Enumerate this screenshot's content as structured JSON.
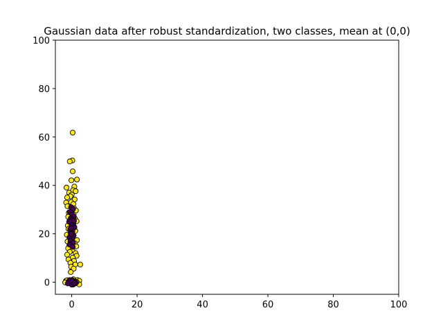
{
  "chart_data": {
    "type": "scatter",
    "title": "Gaussian data after robust standardization, two classes, mean at (0,0)",
    "xlabel": "",
    "ylabel": "",
    "xlim": [
      -5,
      100
    ],
    "ylim": [
      -5,
      100
    ],
    "xticks": [
      0,
      20,
      40,
      60,
      80,
      100
    ],
    "yticks": [
      0,
      20,
      40,
      60,
      80,
      100
    ],
    "grid": false,
    "legend": "none",
    "colors": {
      "class_0": "#440154",
      "class_1": "#fde725",
      "edge": "#000000"
    },
    "series": [
      {
        "class": 1,
        "points": [
          [
            0.3,
            61.8
          ],
          [
            0.2,
            50.3
          ],
          [
            -0.6,
            49.9
          ],
          [
            0.3,
            45.8
          ],
          [
            1.6,
            42.4
          ],
          [
            -0.1,
            42.1
          ],
          [
            0.8,
            39.5
          ],
          [
            -1.6,
            39.1
          ],
          [
            0.4,
            38.0
          ],
          [
            1.2,
            37.6
          ],
          [
            -0.8,
            37.0
          ],
          [
            0.0,
            36.2
          ],
          [
            -0.4,
            35.5
          ],
          [
            -1.4,
            35.0
          ],
          [
            0.9,
            34.2
          ],
          [
            -0.2,
            33.1
          ],
          [
            0.5,
            32.3
          ],
          [
            -1.7,
            32.9
          ],
          [
            -1.3,
            31.4
          ],
          [
            0.7,
            30.5
          ],
          [
            1.3,
            29.6
          ],
          [
            -0.9,
            28.7
          ],
          [
            0.6,
            27.9
          ],
          [
            -1.1,
            27.0
          ],
          [
            1.0,
            26.3
          ],
          [
            1.5,
            25.2
          ],
          [
            -0.5,
            24.6
          ],
          [
            -1.2,
            23.4
          ],
          [
            0.8,
            22.8
          ],
          [
            -1.0,
            22.0
          ],
          [
            1.1,
            21.2
          ],
          [
            -0.3,
            20.3
          ],
          [
            -1.5,
            19.6
          ],
          [
            0.4,
            19.1
          ],
          [
            1.6,
            17.4
          ],
          [
            -1.3,
            16.8
          ],
          [
            0.9,
            16.1
          ],
          [
            -0.7,
            15.4
          ],
          [
            1.4,
            14.8
          ],
          [
            -1.1,
            14.0
          ],
          [
            0.2,
            13.3
          ],
          [
            -0.6,
            12.5
          ],
          [
            1.2,
            12.0
          ],
          [
            -1.4,
            11.4
          ],
          [
            1.5,
            10.9
          ],
          [
            0.3,
            10.2
          ],
          [
            -1.0,
            9.4
          ],
          [
            0.7,
            8.8
          ],
          [
            -0.4,
            8.0
          ],
          [
            1.1,
            7.3
          ],
          [
            2.6,
            7.3
          ],
          [
            -0.2,
            6.4
          ],
          [
            0.6,
            5.6
          ],
          [
            -0.3,
            4.2
          ],
          [
            1.7,
            0.9
          ],
          [
            2.3,
            0.6
          ],
          [
            -1.8,
            0.5
          ],
          [
            0.5,
            1.2
          ],
          [
            -0.9,
            0.2
          ],
          [
            2.3,
            -0.9
          ],
          [
            1.1,
            -0.5
          ],
          [
            -1.4,
            0.8
          ],
          [
            0.8,
            0.4
          ],
          [
            -0.2,
            -0.7
          ],
          [
            1.5,
            0.1
          ],
          [
            -2.0,
            -0.1
          ],
          [
            0.1,
            0.9
          ],
          [
            0.4,
            -1.0
          ]
        ]
      },
      {
        "class": 0,
        "points": [
          [
            -0.2,
            31.0
          ],
          [
            0.4,
            30.2
          ],
          [
            -0.6,
            29.0
          ],
          [
            0.1,
            28.0
          ],
          [
            0.6,
            27.1
          ],
          [
            -0.3,
            26.4
          ],
          [
            0.3,
            25.8
          ],
          [
            -0.8,
            25.0
          ],
          [
            0.5,
            24.2
          ],
          [
            -0.1,
            23.5
          ],
          [
            0.8,
            22.6
          ],
          [
            -0.5,
            21.8
          ],
          [
            0.2,
            21.0
          ],
          [
            -0.3,
            20.1
          ],
          [
            0.6,
            19.3
          ],
          [
            -0.7,
            18.5
          ],
          [
            0.1,
            17.8
          ],
          [
            -0.4,
            17.0
          ],
          [
            0.4,
            16.2
          ],
          [
            -0.6,
            15.5
          ],
          [
            0.3,
            14.6
          ],
          [
            -0.2,
            22.3
          ],
          [
            0.7,
            25.4
          ],
          [
            -0.1,
            19.9
          ],
          [
            -0.9,
            0.3
          ],
          [
            -0.3,
            -0.4
          ],
          [
            0.2,
            0.6
          ],
          [
            0.6,
            -0.8
          ],
          [
            1.0,
            0.2
          ],
          [
            -0.6,
            0.9
          ],
          [
            0.0,
            -1.0
          ],
          [
            1.3,
            -0.2
          ],
          [
            -1.2,
            -0.5
          ],
          [
            0.4,
            0.1
          ],
          [
            -0.1,
            0.4
          ],
          [
            0.8,
            -0.4
          ]
        ]
      }
    ]
  }
}
